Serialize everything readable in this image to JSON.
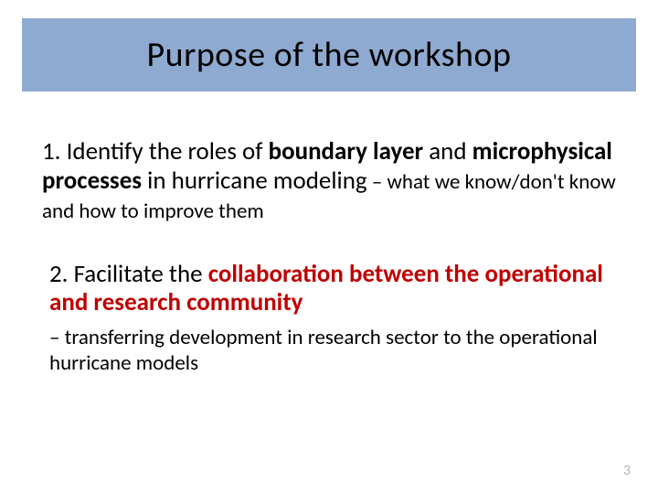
{
  "colors": {
    "title_band_bg": "#8faad0",
    "title_text": "#000000",
    "body_text": "#000000",
    "emphasis_red": "#c00000",
    "page_num_color": "#b9b2a8",
    "slide_bg": "#ffffff"
  },
  "typography": {
    "title_fontsize_pt": 28,
    "body_fontsize_pt": 20,
    "subtext_fontsize_pt": 17,
    "font_family": "Calibri"
  },
  "title": "Purpose of the workshop",
  "item1": {
    "num": "1.",
    "t1": " Identify the roles of ",
    "bold1": "boundary layer",
    "t2": " and ",
    "bold2": "microphysical processes",
    "t3": " in hurricane modeling",
    "tail": " – what we know/don't know and how to improve them"
  },
  "item2": {
    "num": "2.",
    "t1": " Facilitate the ",
    "red1": "collaboration between the operational and research community",
    "sub": "   – transferring development in research sector to the operational hurricane models"
  },
  "page_number": "3"
}
